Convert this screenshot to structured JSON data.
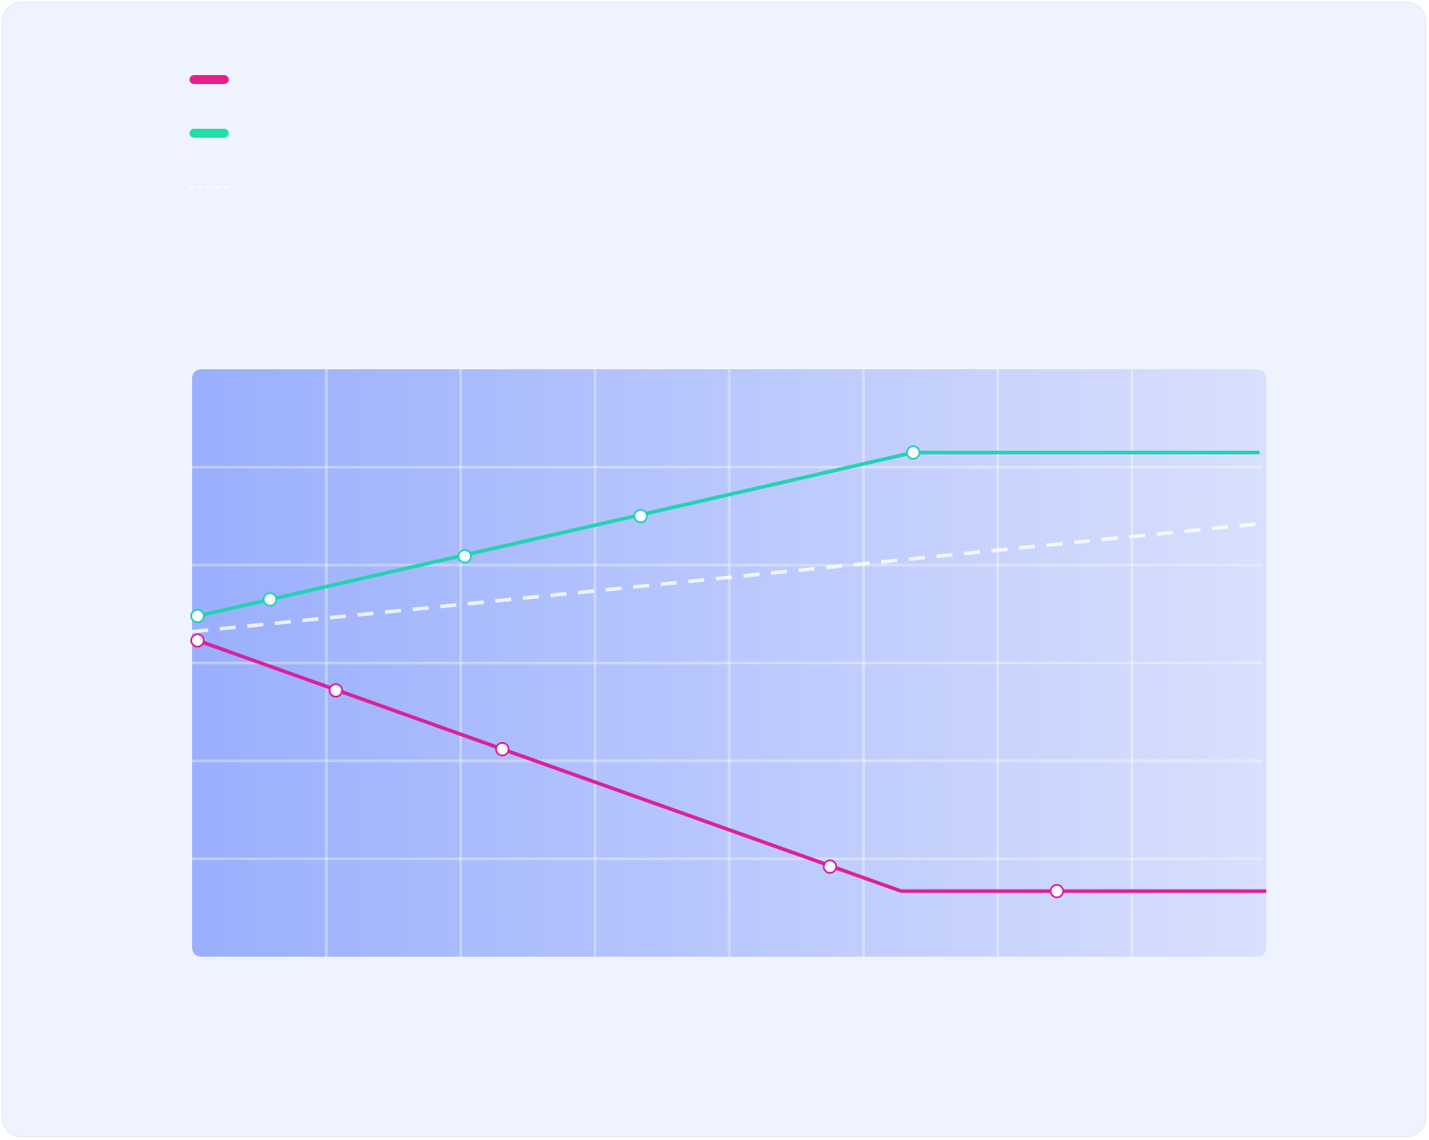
{
  "colors": {
    "background": "#eff3fe",
    "plot_gradient_start": "#9aaffd",
    "plot_gradient_end": "#d8e0fd",
    "grid": "#ffffff",
    "series_down": "#d9219a",
    "series_up": "#22d3b0",
    "series_trend": "#ffffff"
  },
  "chart_data": {
    "type": "line",
    "title": "",
    "xlabel": "",
    "ylabel": "",
    "xlim": [
      0,
      8
    ],
    "ylim": [
      0,
      6
    ],
    "grid": true,
    "legend_placement": "top-left",
    "x_ticks": [],
    "y_ticks": [],
    "series": [
      {
        "name": "",
        "key": "series_down",
        "line": [
          [
            0.04,
            3.23
          ],
          [
            5.28,
            0.67
          ],
          [
            8.0,
            0.67
          ]
        ],
        "points": [
          [
            0.04,
            3.23
          ],
          [
            1.07,
            2.72
          ],
          [
            2.31,
            2.12
          ],
          [
            4.75,
            0.92
          ],
          [
            6.44,
            0.67
          ]
        ],
        "dashed": false
      },
      {
        "name": "",
        "key": "series_up",
        "line": [
          [
            0.04,
            3.48
          ],
          [
            5.37,
            5.15
          ],
          [
            7.95,
            5.15
          ]
        ],
        "points": [
          [
            0.04,
            3.48
          ],
          [
            0.58,
            3.65
          ],
          [
            2.03,
            4.09
          ],
          [
            3.34,
            4.5
          ],
          [
            5.37,
            5.15
          ]
        ],
        "dashed": false
      },
      {
        "name": "",
        "key": "series_trend",
        "line": [
          [
            0.0,
            3.32
          ],
          [
            8.0,
            4.43
          ]
        ],
        "points": [],
        "dashed": true
      }
    ]
  }
}
